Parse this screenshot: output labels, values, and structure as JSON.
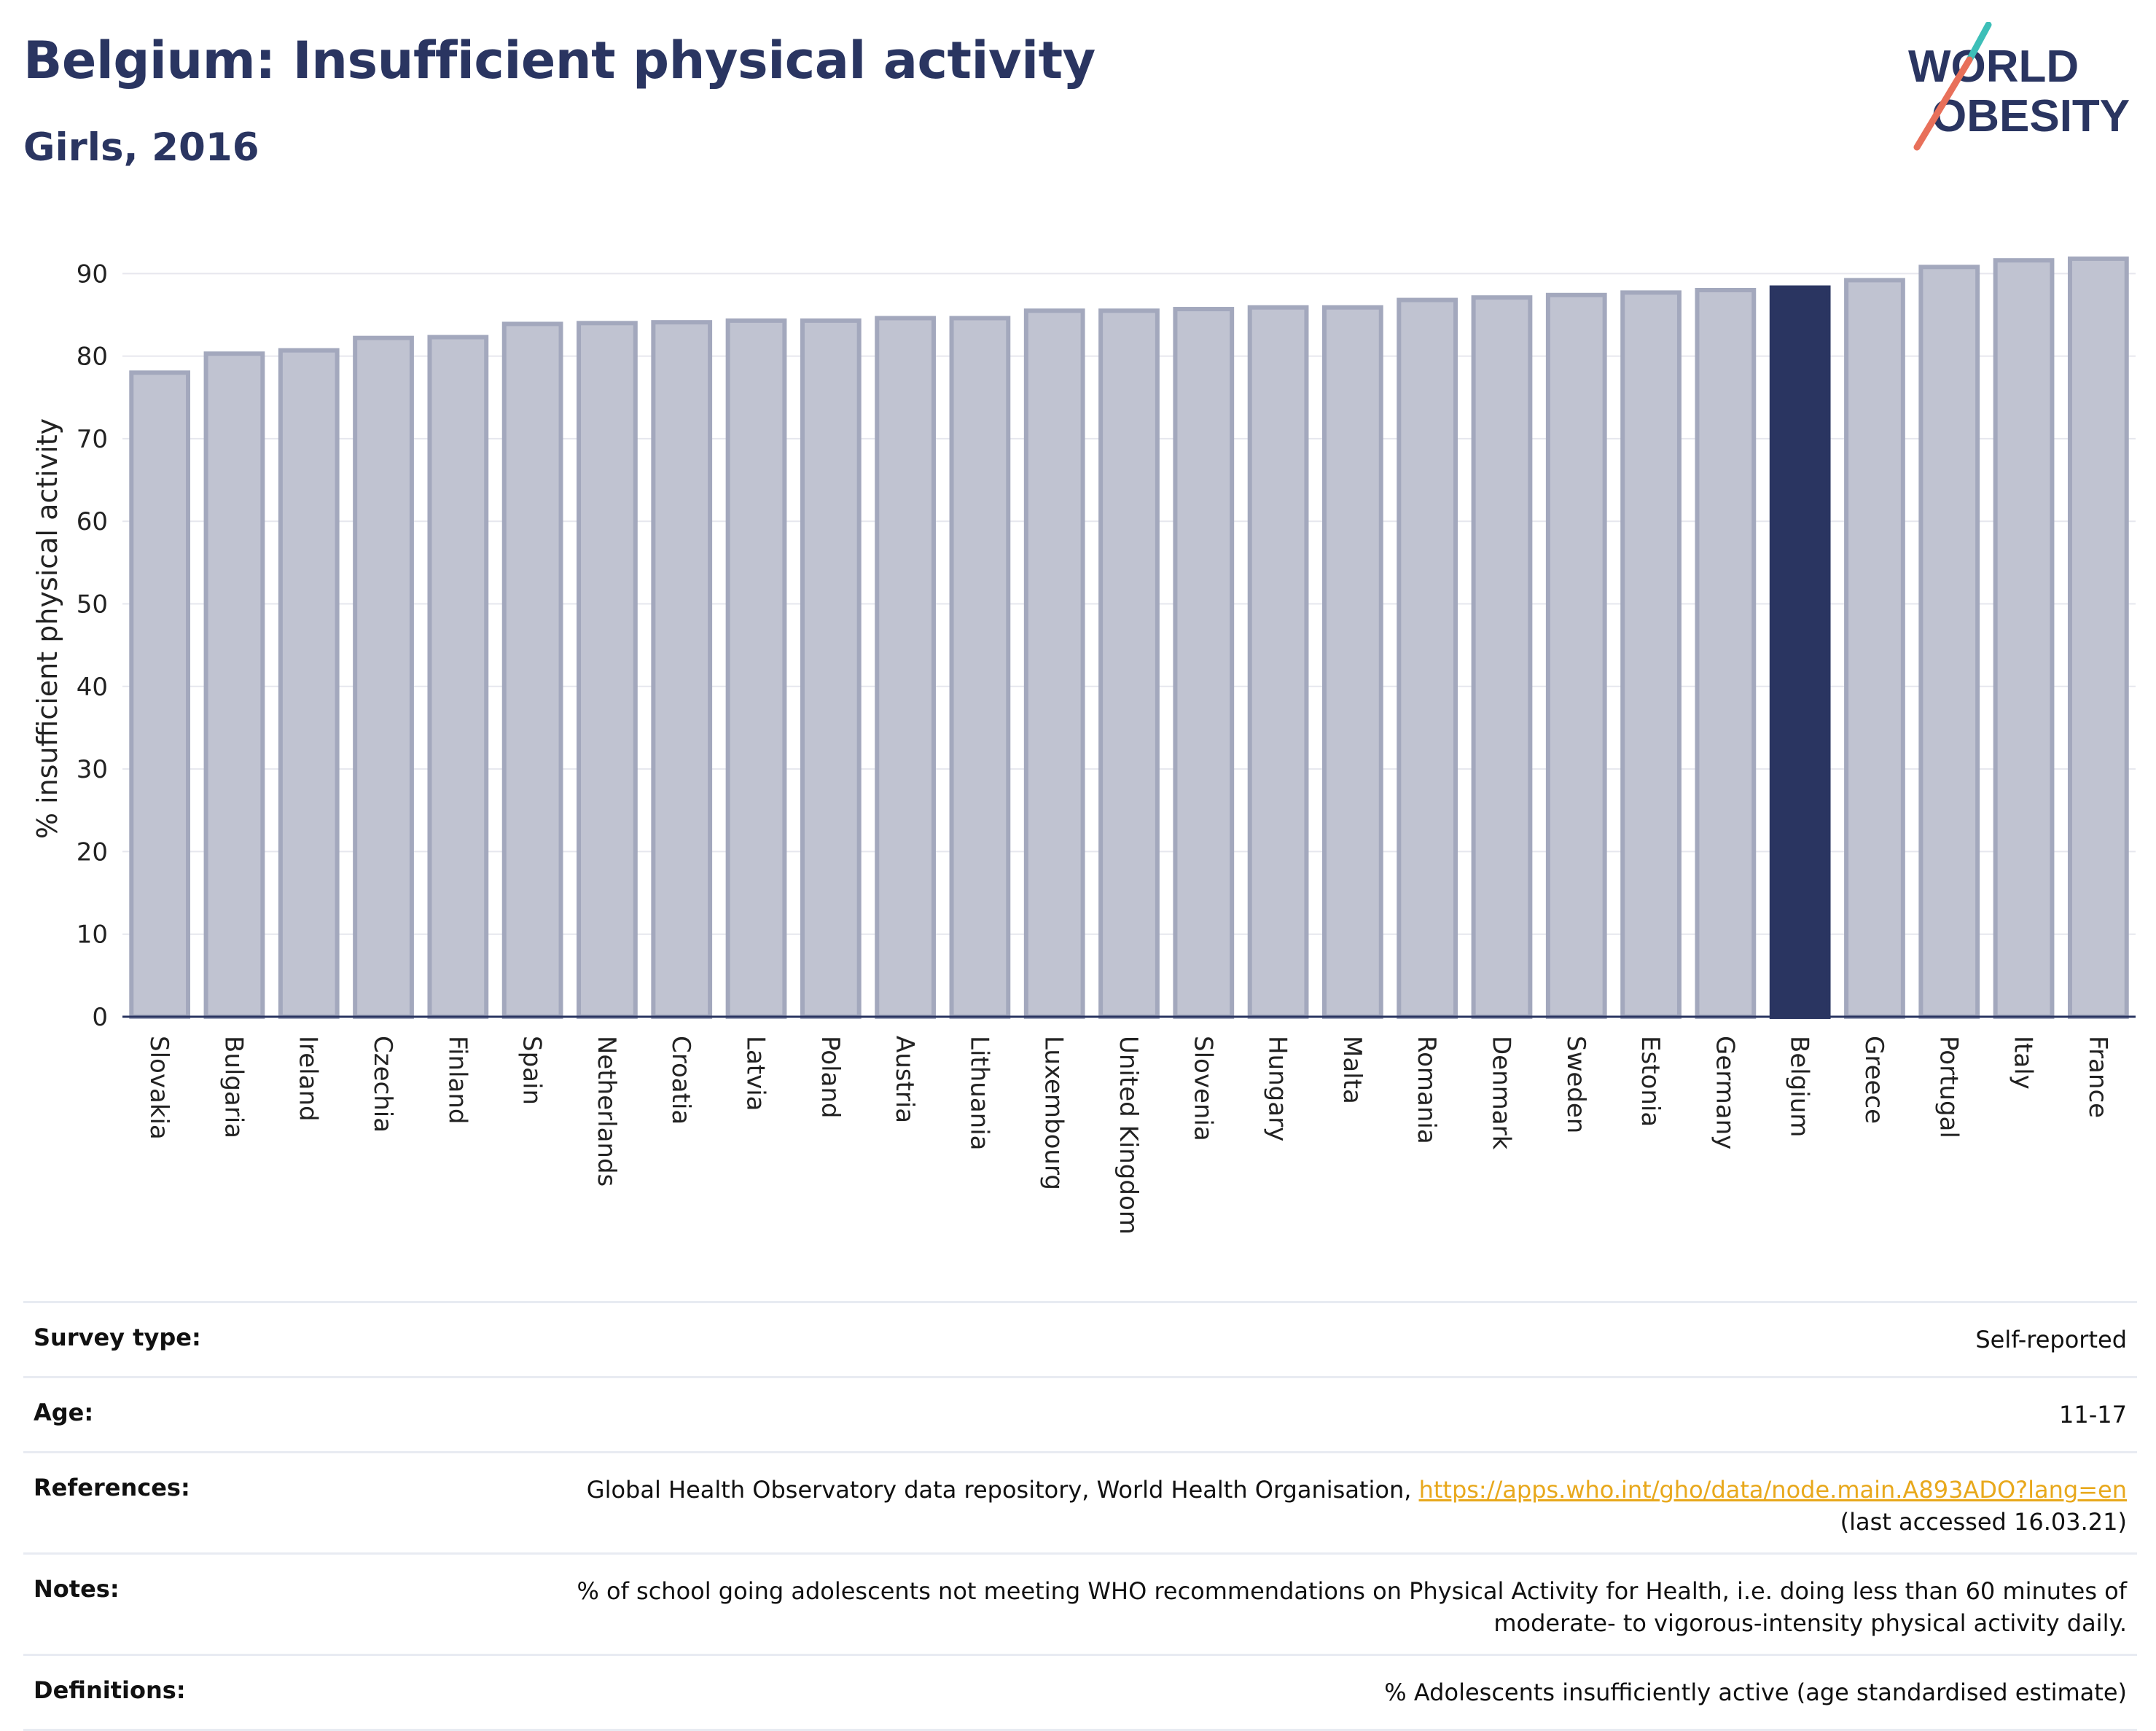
{
  "header": {
    "title": "Belgium: Insufficient physical activity",
    "subtitle": "Girls, 2016"
  },
  "logo": {
    "line1": "WORLD",
    "line2": "OBESITY",
    "colors": {
      "text": "#2a3561",
      "teal": "#3dbfb8",
      "coral": "#e8705a"
    }
  },
  "chart_data": {
    "type": "bar",
    "title": "Belgium: Insufficient physical activity",
    "subtitle": "Girls, 2016",
    "xlabel": "",
    "ylabel": "% insufficient physical activity",
    "ylim": [
      0,
      94
    ],
    "yticks": [
      0,
      10,
      20,
      30,
      40,
      50,
      60,
      70,
      80,
      90
    ],
    "grid": true,
    "highlight": "Belgium",
    "colors": {
      "default_fill": "#c0c3d1",
      "default_stroke": "#a3a8bd",
      "highlight_fill": "#2a3561"
    },
    "categories": [
      "Slovakia",
      "Bulgaria",
      "Ireland",
      "Czechia",
      "Finland",
      "Spain",
      "Netherlands",
      "Croatia",
      "Latvia",
      "Poland",
      "Austria",
      "Lithuania",
      "Luxembourg",
      "United Kingdom",
      "Slovenia",
      "Hungary",
      "Malta",
      "Romania",
      "Denmark",
      "Sweden",
      "Estonia",
      "Germany",
      "Belgium",
      "Greece",
      "Portugal",
      "Italy",
      "France"
    ],
    "values": [
      78.0,
      80.3,
      80.7,
      82.2,
      82.3,
      83.9,
      84.0,
      84.1,
      84.3,
      84.3,
      84.6,
      84.6,
      85.5,
      85.5,
      85.7,
      85.9,
      85.9,
      86.8,
      87.1,
      87.4,
      87.7,
      88.0,
      88.3,
      89.2,
      90.8,
      91.6,
      91.8
    ]
  },
  "info_table": {
    "survey_type": {
      "label": "Survey type:",
      "value": "Self-reported"
    },
    "age": {
      "label": "Age:",
      "value": "11-17"
    },
    "references": {
      "label": "References:",
      "text": "Global Health Observatory data repository, World Health Organisation, ",
      "link": "https://apps.who.int/gho/data/node.main.A893ADO?lang=en",
      "accessed": "(last accessed 16.03.21)"
    },
    "notes": {
      "label": "Notes:",
      "line1": "% of school going adolescents not meeting WHO recommendations on Physical Activity for Health, i.e. doing less than 60 minutes of",
      "line2": "moderate- to vigorous-intensity physical activity daily."
    },
    "definitions": {
      "label": "Definitions:",
      "value": "% Adolescents insufficiently active (age standardised estimate)"
    }
  }
}
